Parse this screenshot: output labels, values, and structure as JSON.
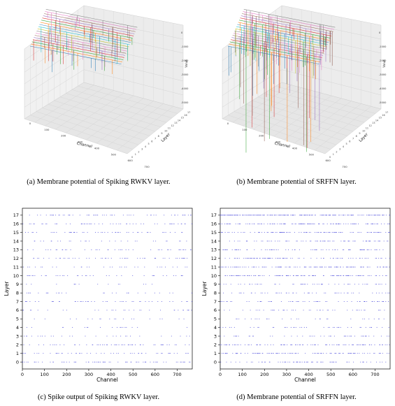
{
  "captions": {
    "a": "(a) Membrane potential of Spiking RWKV layer.",
    "b": "(b) Membrane potential of SRFFN layer.",
    "c": "(c) Spike output of Spiking RWKV layer.",
    "d": "(d) Membrane potential of SRFFN layer."
  },
  "colors": {
    "dots": "#3b3bd8",
    "axis": "#000000",
    "pane": "#f3f3f3",
    "grid": "#d6d6d6"
  },
  "chart_data": [
    {
      "id": "a",
      "type": "line",
      "projection": "3d",
      "xlabel": "Channel",
      "ylabel": "Layer",
      "zlabel": "Value",
      "x_ticks": [
        "0",
        "100",
        "200",
        "300",
        "400",
        "500",
        "600",
        "700"
      ],
      "z_ticks": [
        "0",
        "-1000",
        "-2000",
        "-3000",
        "-4000",
        "-5000"
      ],
      "series_count": 18
    },
    {
      "id": "b",
      "type": "line",
      "projection": "3d",
      "xlabel": "Channel",
      "ylabel": "Layer",
      "zlabel": "Value",
      "x_ticks": [
        "0",
        "100",
        "200",
        "300",
        "400",
        "500",
        "600",
        "700"
      ],
      "z_ticks": [
        "0",
        "-1000",
        "-2000",
        "-3000",
        "-4000",
        "-5000"
      ],
      "series_count": 18
    },
    {
      "id": "c",
      "type": "scatter",
      "xlabel": "Channel",
      "ylabel": "Layer",
      "xlim": [
        0,
        768
      ],
      "ylim": [
        -0.8,
        17.8
      ],
      "x_ticks": [
        0,
        100,
        200,
        300,
        400,
        500,
        600,
        700
      ],
      "y_ticks": [
        0,
        1,
        2,
        3,
        4,
        5,
        6,
        7,
        8,
        9,
        10,
        11,
        12,
        13,
        14,
        15,
        16,
        17
      ],
      "density": [
        0.33,
        0.28,
        0.2,
        0.14,
        0.12,
        0.11,
        0.12,
        0.18,
        0.13,
        0.1,
        0.16,
        0.22,
        0.24,
        0.16,
        0.13,
        0.2,
        0.28,
        0.22
      ]
    },
    {
      "id": "d",
      "type": "scatter",
      "xlabel": "Channel",
      "ylabel": "Layer",
      "xlim": [
        0,
        768
      ],
      "ylim": [
        -0.8,
        17.8
      ],
      "x_ticks": [
        0,
        100,
        200,
        300,
        400,
        500,
        600,
        700
      ],
      "y_ticks": [
        0,
        1,
        2,
        3,
        4,
        5,
        6,
        7,
        8,
        9,
        10,
        11,
        12,
        13,
        14,
        15,
        16,
        17
      ],
      "density": [
        0.3,
        0.55,
        0.4,
        0.22,
        0.18,
        0.14,
        0.2,
        0.3,
        0.2,
        0.28,
        0.45,
        0.6,
        0.38,
        0.35,
        0.3,
        0.48,
        0.52,
        0.75
      ]
    }
  ]
}
